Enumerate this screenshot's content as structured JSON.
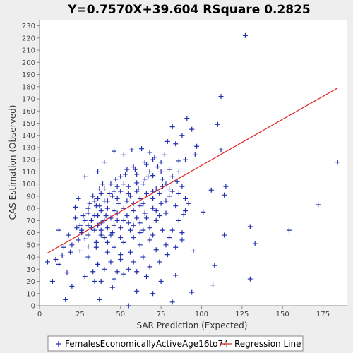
{
  "chart_data": {
    "type": "scatter",
    "title": "Y=0.7570X+39.604    RSquare 0.2825",
    "xlabel": "SAR Prediction (Expected)",
    "ylabel": "CAS Estimation (Observed)",
    "xlim": [
      0,
      190
    ],
    "ylim": [
      0,
      235
    ],
    "xticks": [
      0,
      25,
      50,
      75,
      100,
      125,
      150,
      175
    ],
    "yticks": [
      0,
      10,
      20,
      30,
      40,
      50,
      60,
      70,
      80,
      90,
      100,
      110,
      120,
      130,
      140,
      150,
      160,
      170,
      180,
      190,
      200,
      210,
      220,
      230
    ],
    "grid": false,
    "legend_position": "bottom",
    "colors": {
      "points": "#1f2fb0",
      "regression": "#e02020",
      "plot_bg": "#ffffff",
      "page_bg": "#eeeeee"
    },
    "regression": {
      "slope": 0.757,
      "intercept": 39.604,
      "x_range": [
        5,
        184
      ]
    },
    "series": [
      {
        "name": "FemalesEconomicallyActiveAge16to74",
        "marker": "plus",
        "points": [
          [
            127,
            222
          ],
          [
            112,
            172
          ],
          [
            91,
            154
          ],
          [
            110,
            149
          ],
          [
            94,
            145
          ],
          [
            82,
            147
          ],
          [
            88,
            140
          ],
          [
            97,
            131
          ],
          [
            112,
            128
          ],
          [
            96,
            124
          ],
          [
            90,
            120
          ],
          [
            86,
            119
          ],
          [
            84,
            133
          ],
          [
            79,
            135
          ],
          [
            106,
            95
          ],
          [
            115,
            98
          ],
          [
            114,
            91
          ],
          [
            101,
            77
          ],
          [
            89,
            75
          ],
          [
            130,
            65
          ],
          [
            133,
            51
          ],
          [
            114,
            58
          ],
          [
            172,
            83
          ],
          [
            154,
            62
          ],
          [
            184,
            118
          ],
          [
            95,
            45
          ],
          [
            108,
            33
          ],
          [
            107,
            17
          ],
          [
            130,
            22
          ],
          [
            94,
            11
          ],
          [
            84,
            25
          ],
          [
            82,
            3
          ],
          [
            55,
            0
          ],
          [
            37,
            5
          ],
          [
            16,
            5
          ],
          [
            8,
            20
          ],
          [
            5,
            36
          ],
          [
            12,
            34
          ],
          [
            14,
            41
          ],
          [
            17,
            27
          ],
          [
            12,
            62
          ],
          [
            20,
            16
          ],
          [
            22,
            81
          ],
          [
            24,
            88
          ],
          [
            28,
            106
          ],
          [
            36,
            110
          ],
          [
            40,
            118
          ],
          [
            46,
            127
          ],
          [
            52,
            124
          ],
          [
            57,
            128
          ],
          [
            63,
            129
          ],
          [
            68,
            126
          ],
          [
            70,
            120
          ],
          [
            75,
            118
          ],
          [
            30,
            40
          ],
          [
            33,
            28
          ],
          [
            38,
            20
          ],
          [
            45,
            15
          ],
          [
            60,
            12
          ],
          [
            70,
            10
          ],
          [
            75,
            20
          ],
          [
            66,
            24
          ],
          [
            55,
            30
          ],
          [
            50,
            38
          ],
          [
            42,
            44
          ],
          [
            35,
            48
          ],
          [
            28,
            55
          ],
          [
            25,
            66
          ],
          [
            22,
            72
          ],
          [
            30,
            76
          ],
          [
            35,
            82
          ],
          [
            40,
            86
          ],
          [
            45,
            90
          ],
          [
            50,
            94
          ],
          [
            55,
            98
          ],
          [
            60,
            101
          ],
          [
            65,
            104
          ],
          [
            70,
            107
          ],
          [
            75,
            110
          ],
          [
            80,
            112
          ],
          [
            85,
            102
          ],
          [
            88,
            98
          ],
          [
            80,
            90
          ],
          [
            75,
            84
          ],
          [
            70,
            80
          ],
          [
            65,
            76
          ],
          [
            60,
            72
          ],
          [
            55,
            68
          ],
          [
            50,
            64
          ],
          [
            45,
            60
          ],
          [
            40,
            56
          ],
          [
            35,
            52
          ],
          [
            30,
            49
          ],
          [
            25,
            45
          ],
          [
            20,
            50
          ],
          [
            18,
            58
          ],
          [
            26,
            60
          ],
          [
            32,
            64
          ],
          [
            38,
            68
          ],
          [
            44,
            72
          ],
          [
            48,
            76
          ],
          [
            52,
            80
          ],
          [
            58,
            84
          ],
          [
            62,
            88
          ],
          [
            66,
            92
          ],
          [
            72,
            96
          ],
          [
            78,
            100
          ],
          [
            82,
            106
          ],
          [
            86,
            92
          ],
          [
            90,
            88
          ],
          [
            84,
            82
          ],
          [
            78,
            76
          ],
          [
            72,
            70
          ],
          [
            68,
            64
          ],
          [
            62,
            60
          ],
          [
            58,
            56
          ],
          [
            52,
            52
          ],
          [
            46,
            48
          ],
          [
            42,
            52
          ],
          [
            38,
            58
          ],
          [
            34,
            62
          ],
          [
            40,
            70
          ],
          [
            46,
            78
          ],
          [
            54,
            86
          ],
          [
            60,
            94
          ],
          [
            64,
            100
          ],
          [
            68,
            110
          ],
          [
            58,
            114
          ],
          [
            50,
            106
          ],
          [
            44,
            100
          ],
          [
            38,
            92
          ],
          [
            34,
            86
          ],
          [
            30,
            80
          ],
          [
            28,
            70
          ],
          [
            36,
            74
          ],
          [
            42,
            80
          ],
          [
            48,
            88
          ],
          [
            56,
            90
          ],
          [
            62,
            82
          ],
          [
            70,
            88
          ],
          [
            74,
            92
          ],
          [
            80,
            96
          ],
          [
            76,
            104
          ],
          [
            66,
            116
          ],
          [
            54,
            112
          ],
          [
            48,
            98
          ],
          [
            40,
            96
          ],
          [
            36,
            88
          ],
          [
            32,
            70
          ],
          [
            38,
            62
          ],
          [
            44,
            58
          ],
          [
            50,
            56
          ],
          [
            56,
            62
          ],
          [
            62,
            68
          ],
          [
            66,
            72
          ],
          [
            72,
            78
          ],
          [
            78,
            86
          ],
          [
            82,
            94
          ],
          [
            86,
            110
          ],
          [
            60,
            108
          ],
          [
            52,
            100
          ],
          [
            46,
            94
          ],
          [
            42,
            86
          ],
          [
            38,
            78
          ],
          [
            34,
            74
          ],
          [
            30,
            66
          ],
          [
            26,
            62
          ],
          [
            24,
            54
          ],
          [
            30,
            58
          ],
          [
            36,
            66
          ],
          [
            42,
            64
          ],
          [
            48,
            70
          ],
          [
            54,
            74
          ],
          [
            58,
            78
          ],
          [
            64,
            84
          ],
          [
            70,
            94
          ],
          [
            76,
            98
          ],
          [
            74,
            74
          ],
          [
            68,
            54
          ],
          [
            62,
            50
          ],
          [
            56,
            44
          ],
          [
            50,
            42
          ],
          [
            44,
            36
          ],
          [
            40,
            30
          ],
          [
            36,
            34
          ],
          [
            48,
            28
          ],
          [
            58,
            36
          ],
          [
            64,
            40
          ],
          [
            72,
            46
          ],
          [
            78,
            50
          ],
          [
            82,
            62
          ],
          [
            86,
            70
          ],
          [
            90,
            78
          ],
          [
            92,
            84
          ],
          [
            88,
            60
          ],
          [
            80,
            56
          ],
          [
            76,
            62
          ],
          [
            70,
            58
          ],
          [
            64,
            62
          ],
          [
            58,
            66
          ],
          [
            52,
            70
          ],
          [
            46,
            66
          ],
          [
            41,
            74
          ],
          [
            37,
            82
          ],
          [
            33,
            90
          ],
          [
            39,
            100
          ],
          [
            47,
            104
          ],
          [
            53,
            108
          ],
          [
            59,
            112
          ],
          [
            65,
            118
          ],
          [
            71,
            122
          ],
          [
            77,
            124
          ],
          [
            73,
            114
          ],
          [
            67,
            106
          ],
          [
            61,
            96
          ],
          [
            55,
            92
          ],
          [
            49,
            84
          ],
          [
            43,
            92
          ],
          [
            37,
            96
          ],
          [
            31,
            84
          ],
          [
            27,
            74
          ],
          [
            23,
            64
          ],
          [
            19,
            44
          ],
          [
            15,
            48
          ],
          [
            10,
            38
          ],
          [
            28,
            24
          ],
          [
            34,
            20
          ],
          [
            46,
            22
          ],
          [
            52,
            26
          ],
          [
            60,
            28
          ],
          [
            68,
            32
          ],
          [
            74,
            36
          ],
          [
            79,
            42
          ],
          [
            84,
            48
          ],
          [
            88,
            54
          ]
        ]
      }
    ],
    "legend": [
      {
        "label": "FemalesEconomicallyActiveAge16to74",
        "marker": "plus"
      },
      {
        "label": "Regression Line",
        "marker": "line"
      }
    ]
  }
}
